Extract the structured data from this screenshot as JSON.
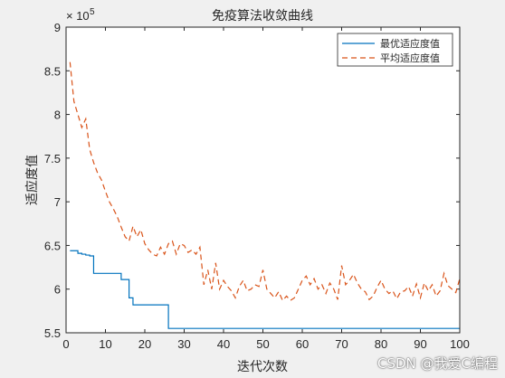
{
  "chart_data": {
    "type": "line",
    "title": "免疫算法收敛曲线",
    "xlabel": "迭代次数",
    "ylabel": "适应度值",
    "exponent_label": "× 10",
    "exponent_power": "5",
    "xlim": [
      0,
      100
    ],
    "ylim": [
      550000,
      900000
    ],
    "x_ticks": [
      0,
      10,
      20,
      30,
      40,
      50,
      60,
      70,
      80,
      90,
      100
    ],
    "y_ticks": [
      5.5,
      6,
      6.5,
      7,
      7.5,
      8,
      8.5,
      9
    ],
    "y_ticks_values": [
      550000,
      600000,
      650000,
      700000,
      750000,
      800000,
      850000,
      900000
    ],
    "legend_position": "top-right",
    "series": [
      {
        "name": "最优适应度值",
        "color": "#0072BD",
        "style": "solid",
        "x": [
          1,
          2,
          3,
          4,
          5,
          6,
          7,
          8,
          9,
          10,
          11,
          12,
          13,
          14,
          15,
          16,
          17,
          18,
          19,
          20,
          21,
          22,
          23,
          24,
          25,
          26,
          27,
          28,
          29,
          30,
          31,
          32,
          33,
          34,
          35,
          36,
          37,
          38,
          39,
          40,
          41,
          42,
          43,
          44,
          45,
          46,
          47,
          48,
          49,
          50,
          51,
          52,
          53,
          54,
          55,
          56,
          57,
          58,
          59,
          60,
          61,
          62,
          63,
          64,
          65,
          66,
          67,
          68,
          69,
          70,
          71,
          72,
          73,
          74,
          75,
          76,
          77,
          78,
          79,
          80,
          81,
          82,
          83,
          84,
          85,
          86,
          87,
          88,
          89,
          90,
          91,
          92,
          93,
          94,
          95,
          96,
          97,
          98,
          99,
          100
        ],
        "y": [
          644000,
          644000,
          641000,
          640000,
          639000,
          638000,
          618000,
          618000,
          618000,
          618000,
          618000,
          618000,
          618000,
          611000,
          611000,
          590000,
          582000,
          582000,
          582000,
          582000,
          582000,
          582000,
          582000,
          582000,
          582000,
          555000,
          555000,
          555000,
          555000,
          555000,
          555000,
          555000,
          555000,
          555000,
          555000,
          555000,
          555000,
          555000,
          555000,
          555000,
          555000,
          555000,
          555000,
          555000,
          555000,
          555000,
          555000,
          555000,
          555000,
          555000,
          555000,
          555000,
          555000,
          555000,
          555000,
          555000,
          555000,
          555000,
          555000,
          555000,
          555000,
          555000,
          555000,
          555000,
          555000,
          555000,
          555000,
          555000,
          555000,
          555000,
          555000,
          555000,
          555000,
          555000,
          555000,
          555000,
          555000,
          555000,
          555000,
          555000,
          555000,
          555000,
          555000,
          555000,
          555000,
          555000,
          555000,
          555000,
          555000,
          555000,
          555000,
          555000,
          555000,
          555000,
          555000,
          555000,
          555000,
          555000,
          555000,
          555000
        ]
      },
      {
        "name": "平均适应度值",
        "color": "#D95319",
        "style": "dashed",
        "x": [
          1,
          2,
          3,
          4,
          5,
          6,
          7,
          8,
          9,
          10,
          11,
          12,
          13,
          14,
          15,
          16,
          17,
          18,
          19,
          20,
          21,
          22,
          23,
          24,
          25,
          26,
          27,
          28,
          29,
          30,
          31,
          32,
          33,
          34,
          35,
          36,
          37,
          38,
          39,
          40,
          41,
          42,
          43,
          44,
          45,
          46,
          47,
          48,
          49,
          50,
          51,
          52,
          53,
          54,
          55,
          56,
          57,
          58,
          59,
          60,
          61,
          62,
          63,
          64,
          65,
          66,
          67,
          68,
          69,
          70,
          71,
          72,
          73,
          74,
          75,
          76,
          77,
          78,
          79,
          80,
          81,
          82,
          83,
          84,
          85,
          86,
          87,
          88,
          89,
          90,
          91,
          92,
          93,
          94,
          95,
          96,
          97,
          98,
          99,
          100
        ],
        "y": [
          860000,
          815000,
          800000,
          785000,
          795000,
          760000,
          745000,
          733000,
          725000,
          712000,
          700000,
          692000,
          683000,
          671000,
          660000,
          655000,
          672000,
          660000,
          668000,
          652000,
          645000,
          640000,
          638000,
          648000,
          640000,
          652000,
          655000,
          640000,
          652000,
          650000,
          642000,
          645000,
          640000,
          648000,
          605000,
          622000,
          600000,
          630000,
          600000,
          610000,
          603000,
          598000,
          590000,
          603000,
          610000,
          598000,
          600000,
          605000,
          603000,
          622000,
          600000,
          595000,
          590000,
          597000,
          587000,
          592000,
          587000,
          590000,
          600000,
          610000,
          615000,
          605000,
          612000,
          600000,
          605000,
          595000,
          607000,
          600000,
          588000,
          627000,
          605000,
          610000,
          617000,
          607000,
          600000,
          597000,
          588000,
          592000,
          602000,
          610000,
          600000,
          595000,
          598000,
          589000,
          597000,
          598000,
          603000,
          592000,
          606000,
          590000,
          607000,
          598000,
          605000,
          592000,
          598000,
          618000,
          604000,
          600000,
          596000,
          612000
        ]
      }
    ]
  },
  "watermark": "CSDN @我爱C编程"
}
